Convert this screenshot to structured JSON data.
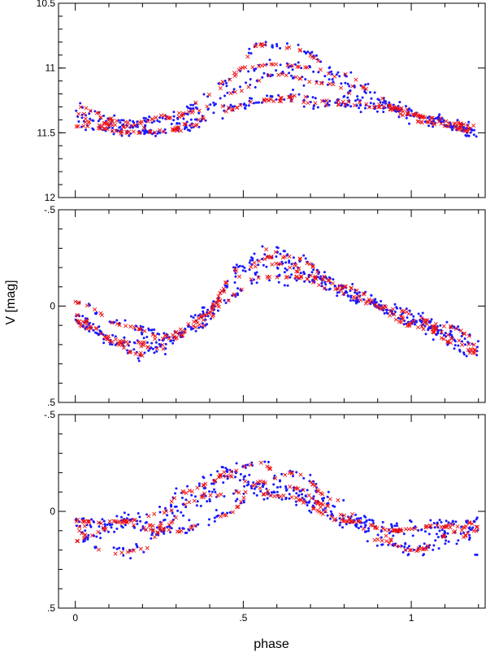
{
  "figure": {
    "xlabel": "phase",
    "ylabel": "V [mag]"
  },
  "colors": {
    "observed": "#1a1aff",
    "model": "#ee1111",
    "frame": "#000000"
  },
  "chart_data": [
    {
      "type": "scatter",
      "panel": "top",
      "xlim": [
        -0.05,
        1.22
      ],
      "ylim": [
        12,
        10.5
      ],
      "inverted_y": true,
      "yticks": [
        10.5,
        11,
        11.5,
        12
      ],
      "ytick_labels": [
        "10.5",
        "11",
        "11.5",
        "12"
      ],
      "xticks": [
        0,
        0.5,
        1
      ],
      "xtick_labels": [],
      "curves": [
        {
          "x": [
            0,
            0.15,
            0.25,
            0.35,
            0.45,
            0.55,
            0.65,
            0.8,
            0.95,
            1.1,
            1.2
          ],
          "y": [
            11.35,
            11.42,
            11.5,
            11.42,
            11.1,
            10.82,
            10.85,
            11.05,
            11.3,
            11.45,
            11.5
          ]
        },
        {
          "x": [
            0,
            0.15,
            0.3,
            0.4,
            0.5,
            0.6,
            0.7,
            0.85,
            1.0,
            1.1,
            1.2
          ],
          "y": [
            11.3,
            11.42,
            11.38,
            11.2,
            11.0,
            10.97,
            11.0,
            11.15,
            11.35,
            11.42,
            11.48
          ]
        },
        {
          "x": [
            0,
            0.15,
            0.3,
            0.42,
            0.55,
            0.65,
            0.75,
            0.9,
            1.05,
            1.2
          ],
          "y": [
            11.4,
            11.5,
            11.48,
            11.35,
            11.25,
            11.22,
            11.25,
            11.28,
            11.38,
            11.5
          ]
        },
        {
          "x": [
            0,
            0.2,
            0.35,
            0.45,
            0.6,
            0.75,
            0.9,
            1.05,
            1.2
          ],
          "y": [
            11.45,
            11.5,
            11.45,
            11.2,
            11.05,
            11.12,
            11.3,
            11.42,
            11.5
          ]
        },
        {
          "x": [
            0,
            0.15,
            0.3,
            0.45,
            0.6,
            0.75,
            0.9,
            1.05,
            1.2
          ],
          "y": [
            11.38,
            11.45,
            11.35,
            11.3,
            11.25,
            11.28,
            11.3,
            11.38,
            11.45
          ]
        }
      ],
      "observed_points": {
        "count": 520,
        "scatter_mag": 0.06
      },
      "model_points": {
        "count": 300,
        "scatter_mag": 0.012
      }
    },
    {
      "type": "scatter",
      "panel": "middle",
      "xlim": [
        -0.05,
        1.22
      ],
      "ylim": [
        0.5,
        -0.5
      ],
      "inverted_y": true,
      "yticks": [
        -0.5,
        0,
        0.5
      ],
      "ytick_labels": [
        "-.5",
        "0",
        ".5"
      ],
      "xticks": [
        0,
        0.5,
        1
      ],
      "xtick_labels": [],
      "curves": [
        {
          "x": [
            0,
            0.15,
            0.28,
            0.38,
            0.48,
            0.56,
            0.65,
            0.8,
            0.95,
            1.1,
            1.2
          ],
          "y": [
            -0.02,
            0.1,
            0.17,
            0.1,
            -0.15,
            -0.3,
            -0.25,
            -0.1,
            0.02,
            0.1,
            0.17
          ]
        },
        {
          "x": [
            0,
            0.12,
            0.25,
            0.38,
            0.5,
            0.6,
            0.72,
            0.85,
            1.0,
            1.2
          ],
          "y": [
            0.05,
            0.18,
            0.22,
            0.05,
            -0.22,
            -0.26,
            -0.15,
            -0.05,
            0.08,
            0.2
          ]
        },
        {
          "x": [
            0,
            0.15,
            0.3,
            0.42,
            0.55,
            0.7,
            0.85,
            1.0,
            1.2
          ],
          "y": [
            0.1,
            0.2,
            0.15,
            0.0,
            -0.15,
            -0.15,
            -0.03,
            0.1,
            0.25
          ]
        },
        {
          "x": [
            0,
            0.2,
            0.35,
            0.5,
            0.6,
            0.75,
            0.9,
            1.05,
            1.2
          ],
          "y": [
            0.08,
            0.25,
            0.1,
            -0.2,
            -0.22,
            -0.1,
            0.0,
            0.12,
            0.23
          ]
        }
      ],
      "observed_points": {
        "count": 520,
        "scatter_mag": 0.05
      },
      "model_points": {
        "count": 300,
        "scatter_mag": 0.01
      }
    },
    {
      "type": "scatter",
      "panel": "bottom",
      "xlim": [
        -0.05,
        1.22
      ],
      "ylim": [
        0.5,
        -0.5
      ],
      "inverted_y": true,
      "yticks": [
        -0.5,
        0,
        0.5
      ],
      "ytick_labels": [
        "-.5",
        "0",
        ".5"
      ],
      "xticks": [
        0,
        0.5,
        1
      ],
      "xtick_labels": [
        "0",
        ".5",
        "1"
      ],
      "curves": [
        {
          "x": [
            0,
            0.12,
            0.25,
            0.35,
            0.45,
            0.55,
            0.65,
            0.8,
            0.95,
            1.1,
            1.2
          ],
          "y": [
            0.08,
            0.05,
            0.1,
            -0.05,
            -0.2,
            -0.25,
            -0.12,
            0.05,
            0.1,
            0.08,
            0.08
          ]
        },
        {
          "x": [
            0,
            0.1,
            0.2,
            0.32,
            0.45,
            0.6,
            0.7,
            0.85,
            1.0,
            1.1,
            1.2
          ],
          "y": [
            0.1,
            0.22,
            0.2,
            -0.1,
            -0.18,
            -0.1,
            -0.05,
            0.05,
            0.2,
            0.18,
            0.1
          ]
        },
        {
          "x": [
            0,
            0.15,
            0.3,
            0.45,
            0.55,
            0.65,
            0.78,
            0.9,
            1.0,
            1.15,
            1.2
          ],
          "y": [
            0.15,
            0.05,
            0.1,
            0.02,
            -0.15,
            -0.2,
            -0.05,
            0.15,
            0.2,
            0.1,
            0.22
          ]
        },
        {
          "x": [
            0,
            0.12,
            0.28,
            0.4,
            0.5,
            0.62,
            0.8,
            0.95,
            1.05,
            1.2
          ],
          "y": [
            0.05,
            0.06,
            0.0,
            -0.08,
            -0.1,
            -0.08,
            0.05,
            0.1,
            0.08,
            0.06
          ]
        }
      ],
      "observed_points": {
        "count": 520,
        "scatter_mag": 0.06
      },
      "model_points": {
        "count": 300,
        "scatter_mag": 0.01
      }
    }
  ]
}
